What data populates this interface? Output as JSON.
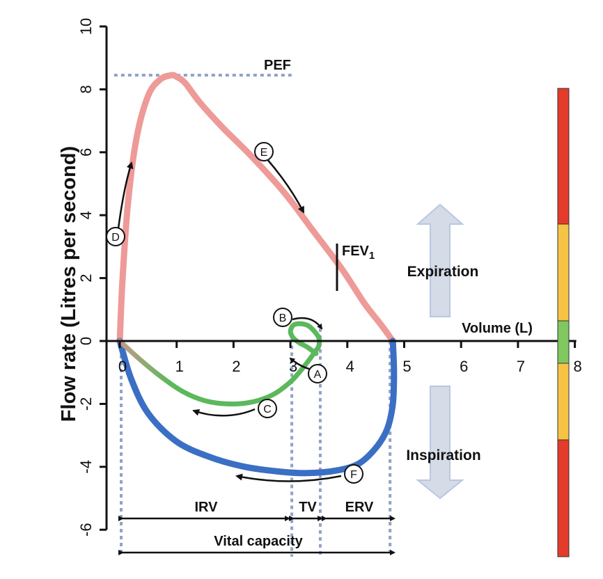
{
  "chart_data": {
    "type": "line",
    "ylabel": "Flow rate (Litres per second)",
    "xlabel": "Volume (L)",
    "xlim": [
      0,
      8
    ],
    "ylim": [
      -6,
      10
    ],
    "x_ticks": [
      "0",
      "1",
      "2",
      "3",
      "4",
      "5",
      "6",
      "7",
      "8"
    ],
    "y_ticks": [
      "-6",
      "-4",
      "-2",
      "0",
      "2",
      "4",
      "6",
      "8",
      "10"
    ],
    "series": [
      {
        "color": "#ee9a98",
        "x": [
          0,
          0.05,
          0.15,
          0.3,
          0.5,
          0.7,
          0.9,
          1.0,
          1.15,
          1.4,
          1.8,
          2.3,
          2.9,
          3.4,
          3.9,
          4.3,
          4.6,
          4.8
        ],
        "y": [
          0,
          2.0,
          4.5,
          6.5,
          7.8,
          8.3,
          8.45,
          8.4,
          8.2,
          7.6,
          6.8,
          5.9,
          4.7,
          3.5,
          2.3,
          1.2,
          0.5,
          0
        ]
      },
      {
        "color": "#3a6fc4",
        "x": [
          4.8,
          4.82,
          4.8,
          4.7,
          4.5,
          4.2,
          3.8,
          3.3,
          2.8,
          2.2,
          1.6,
          1.0,
          0.5,
          0.2,
          0
        ],
        "y": [
          0,
          -1.0,
          -2.0,
          -2.8,
          -3.4,
          -3.9,
          -4.12,
          -4.2,
          -4.15,
          -4.0,
          -3.7,
          -3.2,
          -2.3,
          -1.2,
          0
        ]
      },
      {
        "color": "#5cb85c",
        "x": [
          0,
          0.3,
          0.7,
          1.1,
          1.5,
          1.9,
          2.3,
          2.7,
          3.0,
          3.2,
          3.35,
          3.45,
          3.5,
          3.5,
          3.4,
          3.3,
          3.15,
          3.05,
          3.0,
          3.05,
          3.15,
          3.3,
          3.45
        ],
        "y": [
          0,
          -0.5,
          -1.1,
          -1.6,
          -1.9,
          -2.0,
          -1.95,
          -1.7,
          -1.3,
          -0.9,
          -0.55,
          -0.3,
          -0.15,
          0.1,
          0.35,
          0.5,
          0.55,
          0.5,
          0.3,
          0.1,
          -0.05,
          -0.2,
          -0.4
        ]
      }
    ],
    "annotations": {
      "pef": "PEF",
      "fev1_main": "FEV",
      "fev1_sub": "1",
      "expiration": "Expiration",
      "inspiration": "Inspiration",
      "irv": "IRV",
      "tv": "TV",
      "erv": "ERV",
      "vital_capacity": "Vital capacity",
      "circles": [
        "A",
        "B",
        "C",
        "D",
        "E",
        "F"
      ]
    },
    "grid": false,
    "color_bar": [
      "#e53b2b",
      "#f6c445",
      "#7ec85f",
      "#f6c445",
      "#e53b2b"
    ]
  }
}
